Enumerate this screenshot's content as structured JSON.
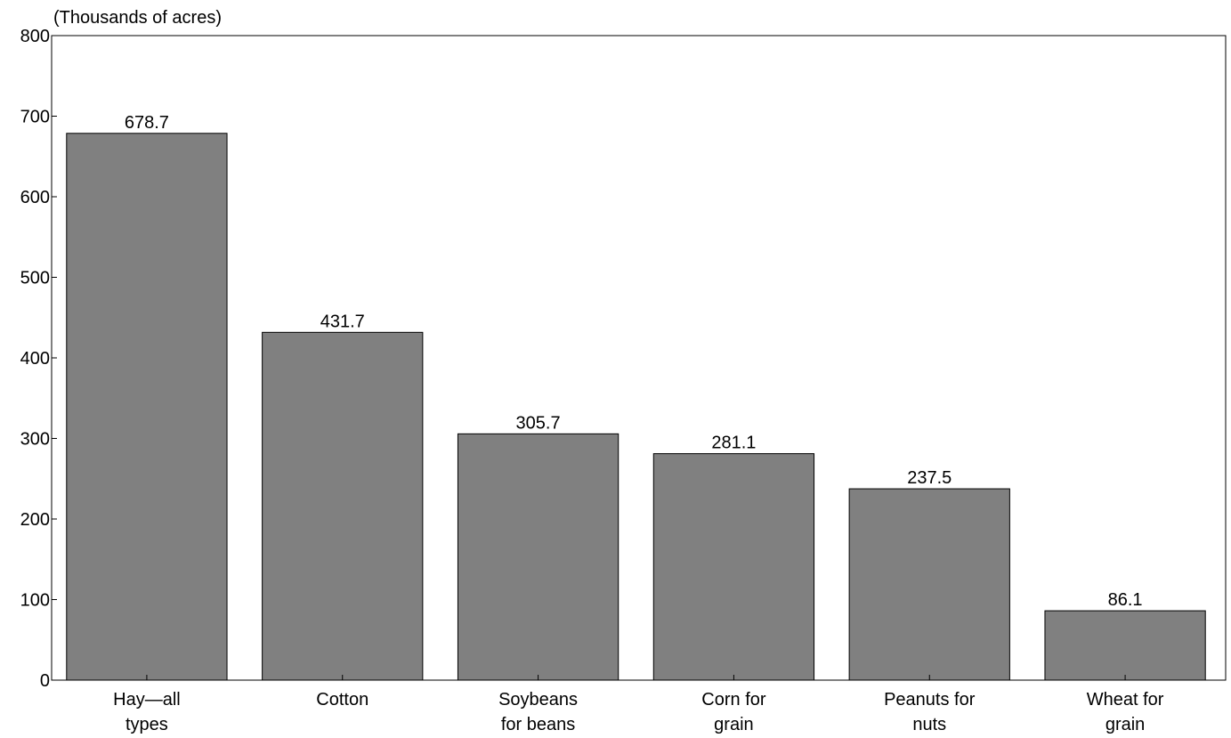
{
  "chart_data": {
    "type": "bar",
    "unit_label": "(Thousands of acres)",
    "categories": [
      [
        "Hay—all",
        "types"
      ],
      [
        "Cotton"
      ],
      [
        "Soybeans",
        "for beans"
      ],
      [
        "Corn for",
        "grain"
      ],
      [
        "Peanuts for",
        "nuts"
      ],
      [
        "Wheat for",
        "grain"
      ]
    ],
    "values": [
      678.7,
      431.7,
      305.7,
      281.1,
      237.5,
      86.1
    ],
    "value_labels": [
      "678.7",
      "431.7",
      "305.7",
      "281.1",
      "237.5",
      "86.1"
    ],
    "ylim": [
      0,
      800
    ],
    "yticks": [
      0,
      100,
      200,
      300,
      400,
      500,
      600,
      700,
      800
    ],
    "bar_color": "#808080",
    "grid": false
  }
}
